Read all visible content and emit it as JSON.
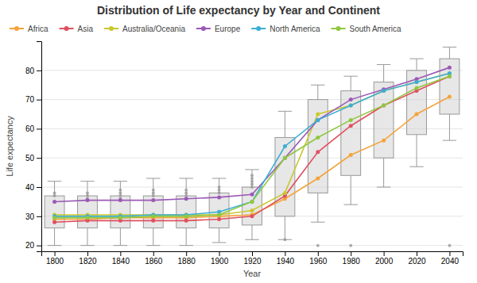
{
  "chart_data": {
    "type": "box",
    "title": "Distribution of Life expectancy by Year and Continent",
    "xlabel": "Year",
    "ylabel": "Life expectancy",
    "x": [
      1800,
      1820,
      1840,
      1860,
      1880,
      1900,
      1920,
      1940,
      1960,
      1980,
      2000,
      2020,
      2040
    ],
    "q1": [
      26,
      26,
      26,
      26,
      26,
      26,
      27,
      30,
      38,
      44,
      50,
      58,
      65
    ],
    "q3": [
      37,
      37,
      37,
      37,
      37,
      38,
      40,
      57,
      70,
      73,
      76,
      80,
      84
    ],
    "whisker_low": [
      20,
      20,
      20,
      20,
      20,
      21,
      22,
      22,
      28,
      34,
      40,
      47,
      56
    ],
    "whisker_high": [
      42,
      42,
      42,
      43,
      43,
      43,
      46,
      66,
      75,
      78,
      82,
      84,
      88
    ],
    "outliers": {
      "x": [
        1800,
        1800,
        1820,
        1820,
        1820,
        1840,
        1840,
        1840,
        1840,
        1860,
        1860,
        1860,
        1880,
        1880,
        1880,
        1900,
        1900,
        1900,
        1920,
        1920,
        1920,
        1920,
        1920,
        1940,
        1960,
        1980,
        2040
      ],
      "y": [
        37,
        38,
        36,
        37,
        38,
        36,
        37,
        38,
        39,
        37,
        38,
        39,
        37,
        38,
        39,
        38,
        39,
        40,
        40,
        41,
        42,
        43,
        44,
        22,
        20,
        20,
        20
      ]
    },
    "series": [
      {
        "name": "Africa",
        "color": "#F4A43B",
        "type": "line",
        "marker": "circle",
        "values": [
          29.0,
          29.0,
          29.5,
          29.5,
          29.5,
          30.0,
          30.5,
          36.0,
          43.0,
          51.0,
          56.0,
          65.0,
          71.0
        ]
      },
      {
        "name": "Asia",
        "color": "#E05060",
        "type": "line",
        "marker": "circle",
        "values": [
          28.0,
          28.5,
          28.5,
          28.5,
          28.5,
          29.0,
          30.0,
          37.0,
          52.0,
          61.0,
          68.0,
          73.0,
          78.0
        ]
      },
      {
        "name": "Australia/Oceania",
        "color": "#C8C830",
        "type": "line",
        "marker": "circle",
        "values": [
          30.5,
          30.5,
          30.5,
          30.5,
          30.5,
          30.5,
          32.0,
          38.0,
          65.0,
          68.0,
          73.0,
          76.0,
          79.0
        ]
      },
      {
        "name": "Europe",
        "color": "#9B59B6",
        "type": "line",
        "marker": "circle",
        "values": [
          35.0,
          35.5,
          35.5,
          35.5,
          36.0,
          36.5,
          37.5,
          50.0,
          63.0,
          70.0,
          73.5,
          77.0,
          81.0
        ]
      },
      {
        "name": "North America",
        "color": "#3BAED4",
        "type": "line",
        "marker": "circle",
        "values": [
          30.0,
          30.0,
          30.0,
          30.5,
          30.5,
          31.5,
          35.0,
          54.0,
          63.0,
          68.0,
          73.0,
          76.0,
          79.0
        ]
      },
      {
        "name": "South America",
        "color": "#90C840",
        "type": "line",
        "marker": "circle",
        "values": [
          29.5,
          29.5,
          29.5,
          30.0,
          30.0,
          30.5,
          35.0,
          50.0,
          57.0,
          63.0,
          68.0,
          74.0,
          78.0
        ]
      }
    ],
    "xlim": [
      1792,
      2048
    ],
    "ylim": [
      18,
      90
    ],
    "xticks": [
      1800,
      1820,
      1840,
      1860,
      1880,
      1900,
      1920,
      1940,
      1960,
      1980,
      2000,
      2020,
      2040
    ],
    "yticks": [
      20,
      30,
      40,
      50,
      60,
      70,
      80
    ],
    "grid": "y",
    "legend": "top"
  }
}
